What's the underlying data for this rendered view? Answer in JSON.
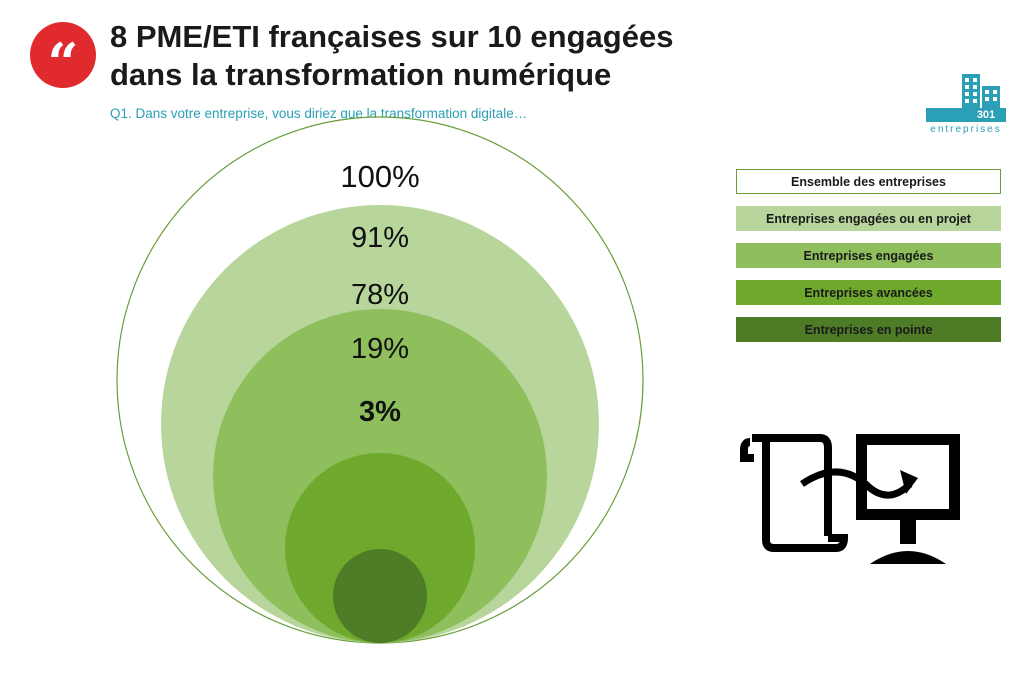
{
  "header": {
    "quote_glyph": "“",
    "title_line1": "8 PME/ETI françaises sur 10 engagées",
    "title_line2": "dans la transformation numérique",
    "question": "Q1. Dans votre entreprise, vous diriez que la transformation digitale…"
  },
  "logo": {
    "number": "301",
    "word": "entreprises",
    "icon": "buildings-icon"
  },
  "colors": {
    "accent_red": "#e02a2e",
    "accent_teal": "#2a9fb5",
    "ring_1": "#ffffff",
    "ring_2": "#b8d69b",
    "ring_3": "#8ebf5c",
    "ring_4": "#6ea92d",
    "ring_5": "#4e7b26",
    "outline": "#6a9e3a"
  },
  "chart_data": {
    "type": "nested-circles",
    "series": [
      {
        "name": "Ensemble des entreprises",
        "value": 100,
        "label": "100%",
        "bold": false
      },
      {
        "name": "Entreprises engagées ou en projet",
        "value": 91,
        "label": "91%",
        "bold": false
      },
      {
        "name": "Entreprises engagées",
        "value": 78,
        "label": "78%",
        "bold": false
      },
      {
        "name": "Entreprises avancées",
        "value": 19,
        "label": "19%",
        "bold": false
      },
      {
        "name": "Entreprises en pointe",
        "value": 3,
        "label": "3%",
        "bold": true
      }
    ],
    "legend_position": "right"
  },
  "illustration": {
    "icon": "document-to-computer-icon"
  }
}
